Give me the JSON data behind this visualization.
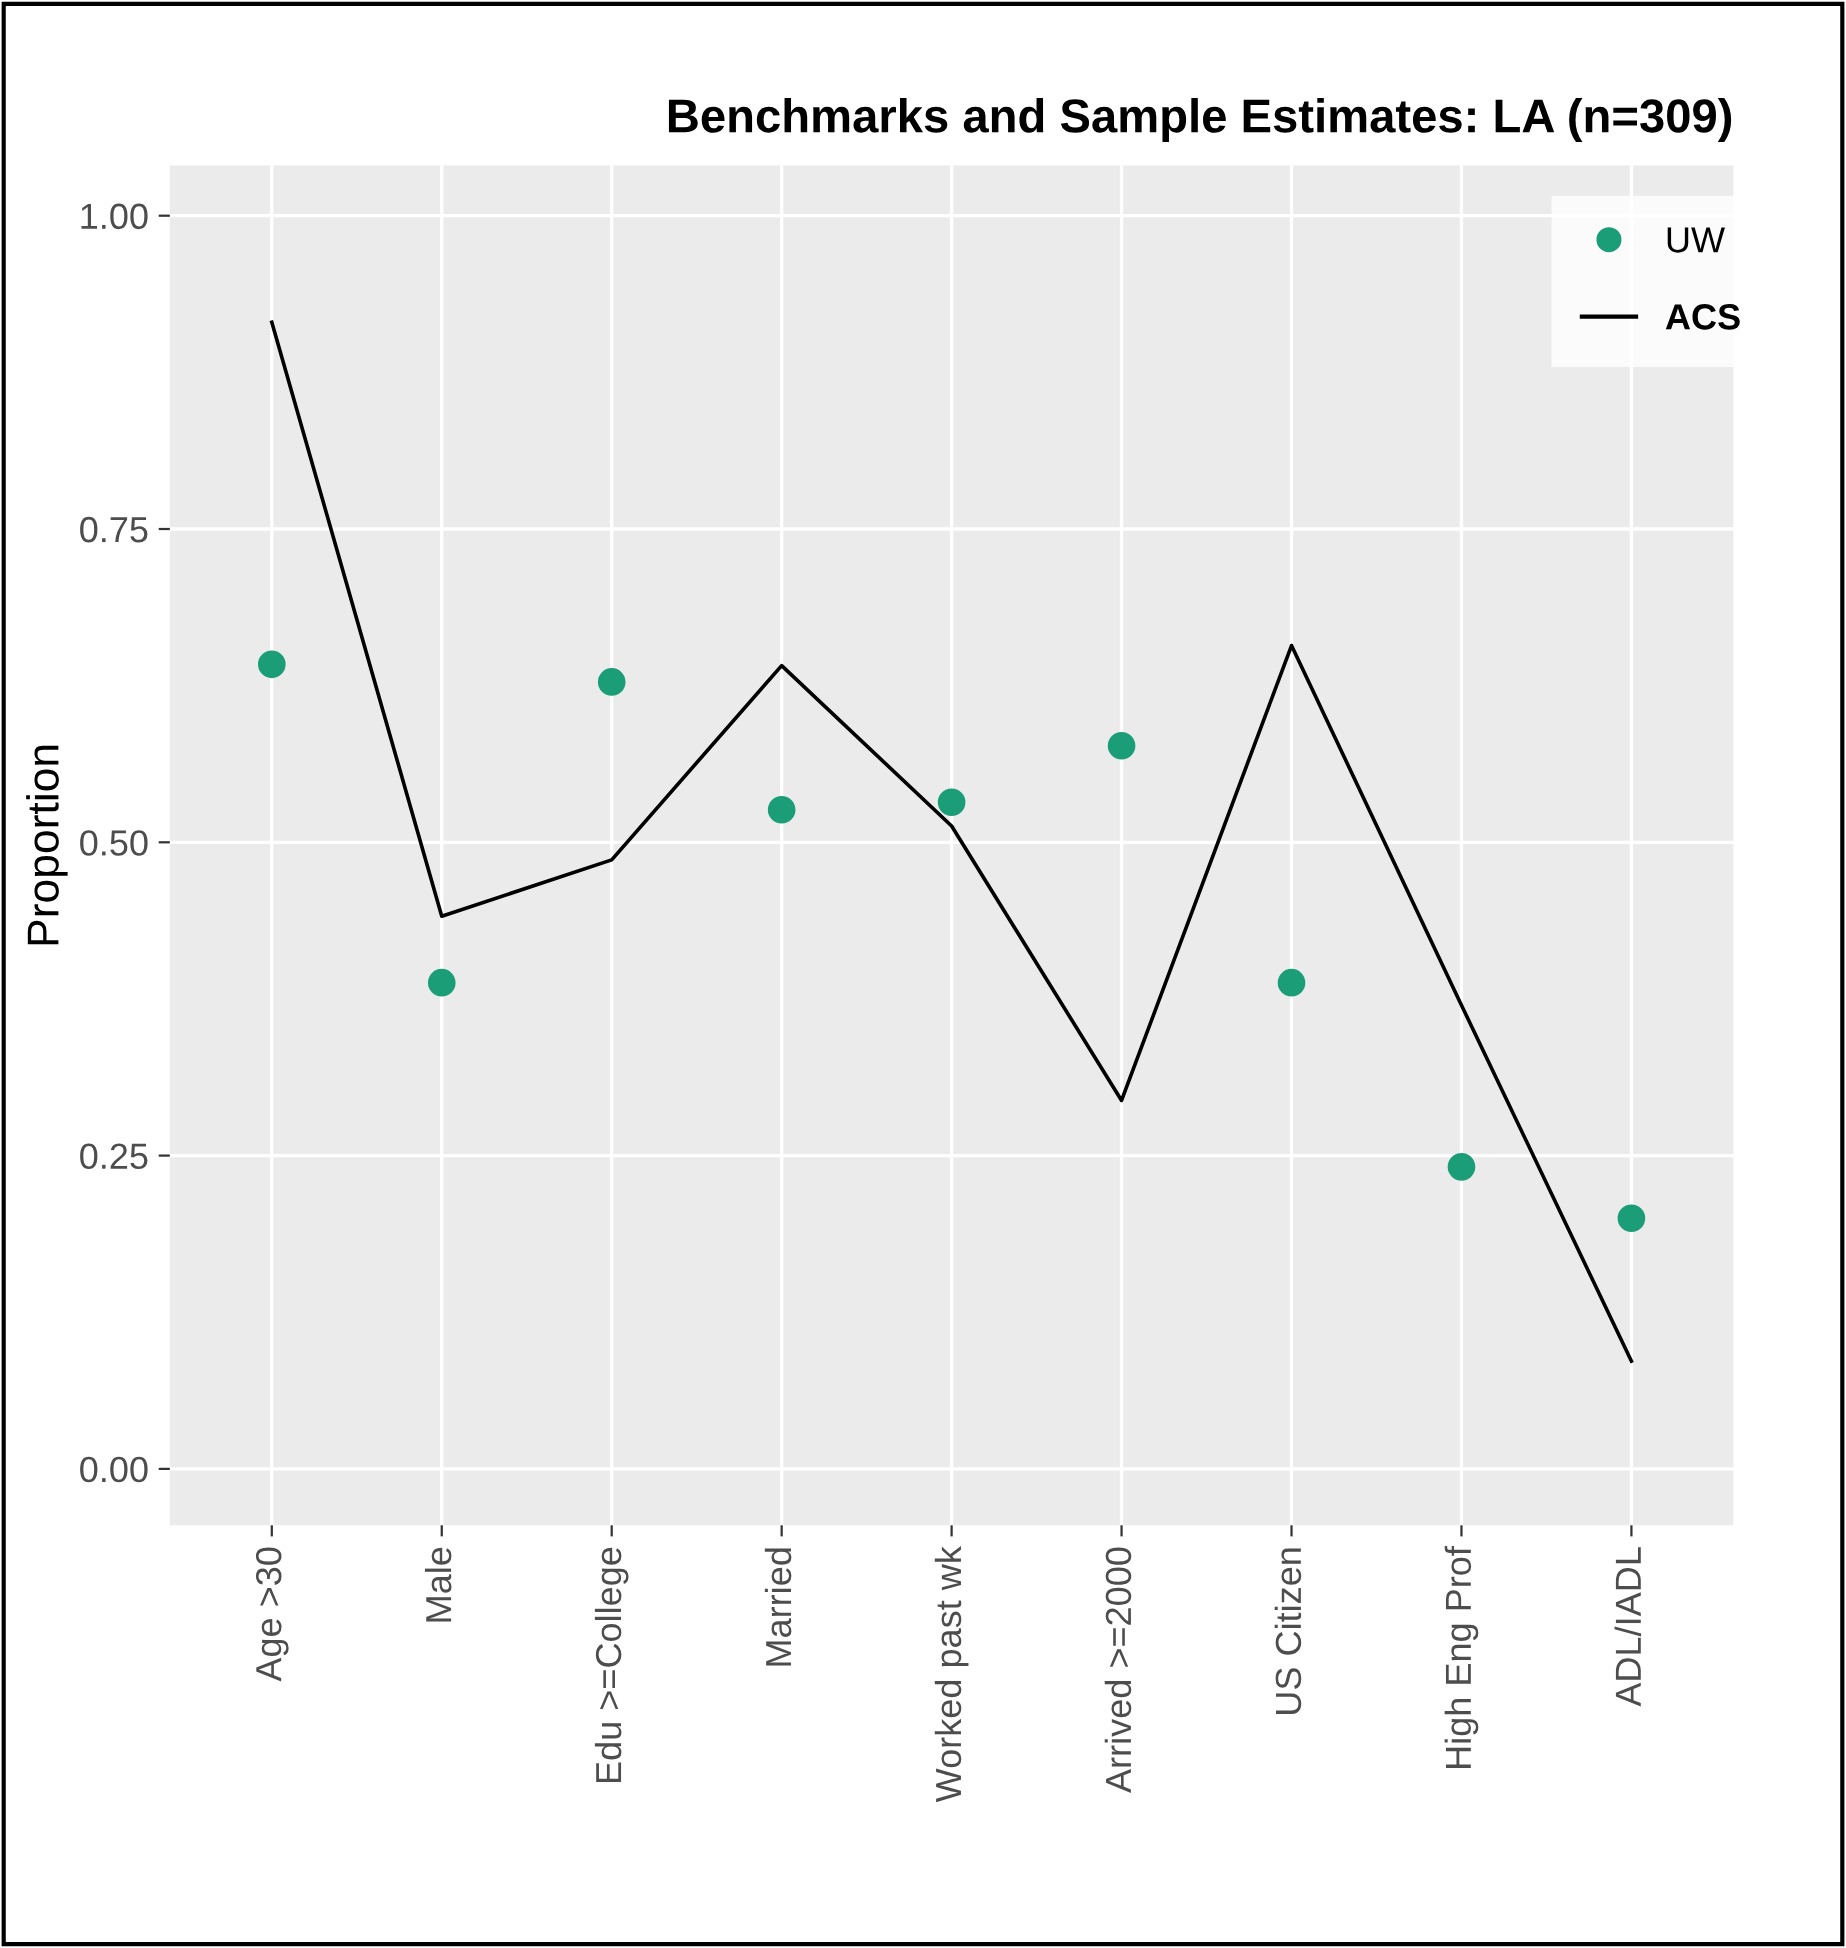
{
  "chart_data": {
    "type": "scatter",
    "title": "Benchmarks and Sample Estimates: LA (n=309)",
    "ylabel": "Proportion",
    "categories": [
      "Age >30",
      "Male",
      "Edu >=College",
      "Married",
      "Worked past wk",
      "Arrived >=2000",
      "US Citizen",
      "High Eng Prof",
      "ADL/IADL"
    ],
    "series": [
      {
        "name": "UW",
        "color": "#1b9e77",
        "marker": "circle",
        "values": [
          0.642,
          0.388,
          0.628,
          0.526,
          0.532,
          0.577,
          0.388,
          0.241,
          0.2
        ]
      },
      {
        "name": "ACS",
        "type": "line",
        "color": "#000000",
        "line_style": "solid",
        "values": [
          0.915,
          0.441,
          0.486,
          0.641,
          0.513,
          0.294,
          0.657,
          0.37,
          0.086
        ]
      }
    ],
    "ylim": [
      -0.045,
      1.04
    ],
    "yticks": [
      {
        "value": 0,
        "label": "0.00"
      },
      {
        "value": 0.25,
        "label": "0.25"
      },
      {
        "value": 0.5,
        "label": "0.50"
      },
      {
        "value": 0.75,
        "label": "0.75"
      },
      {
        "value": 1,
        "label": "1.00"
      }
    ],
    "grid": true,
    "legend": "top right"
  }
}
